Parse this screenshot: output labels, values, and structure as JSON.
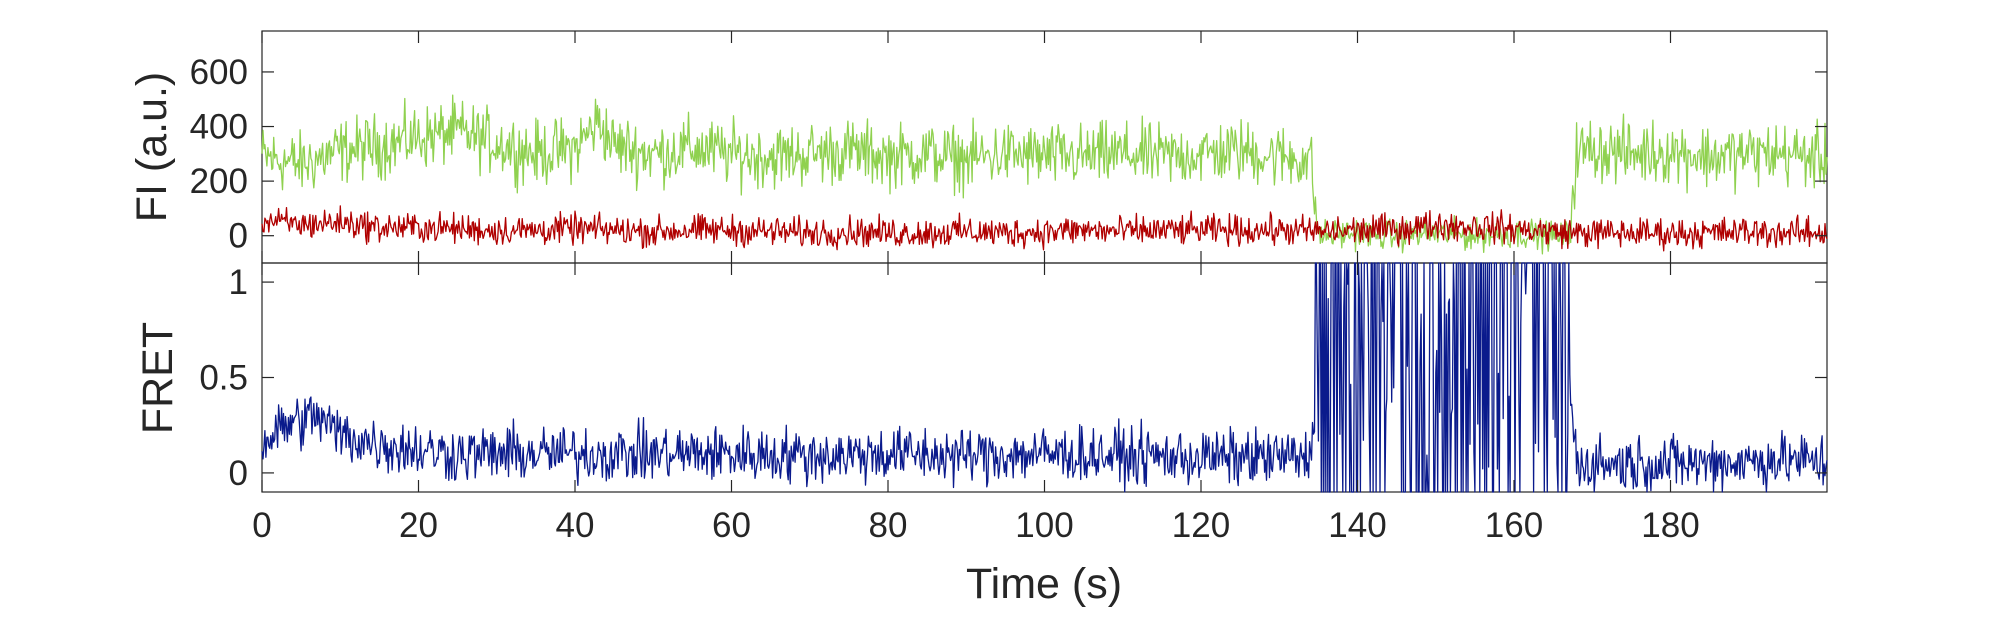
{
  "chart_data": [
    {
      "type": "line",
      "panel": "top",
      "xlabel": "",
      "ylabel": "FI (a.u.)",
      "xlim": [
        0,
        200
      ],
      "ylim": [
        -100,
        750
      ],
      "xticks": [
        0,
        20,
        40,
        60,
        80,
        100,
        120,
        140,
        160,
        180
      ],
      "yticks": [
        0,
        200,
        400,
        600
      ],
      "ytick_labels": [
        "0",
        "200",
        "400",
        "600"
      ],
      "grid": false,
      "legend": "none",
      "series": [
        {
          "color": "#8fd14f",
          "x": [
            0,
            5,
            10,
            15,
            20,
            25,
            30,
            35,
            40,
            43,
            45,
            50,
            55,
            60,
            65,
            70,
            75,
            80,
            85,
            90,
            95,
            100,
            105,
            110,
            115,
            120,
            125,
            130,
            134,
            135,
            140,
            145,
            150,
            155,
            160,
            165,
            167,
            168,
            170,
            175,
            180,
            185,
            190,
            195,
            200
          ],
          "values": [
            290,
            260,
            310,
            330,
            360,
            380,
            340,
            300,
            320,
            420,
            330,
            300,
            320,
            300,
            290,
            300,
            310,
            290,
            300,
            280,
            300,
            290,
            290,
            300,
            290,
            300,
            310,
            290,
            280,
            0,
            10,
            0,
            10,
            0,
            10,
            0,
            0,
            300,
            320,
            300,
            310,
            290,
            300,
            300,
            280
          ]
        },
        {
          "color": "#b00000",
          "x": [
            0,
            5,
            10,
            15,
            20,
            25,
            30,
            35,
            40,
            45,
            50,
            55,
            60,
            65,
            70,
            75,
            80,
            85,
            90,
            95,
            100,
            105,
            110,
            115,
            120,
            125,
            130,
            135,
            140,
            145,
            150,
            155,
            160,
            165,
            170,
            175,
            180,
            185,
            190,
            195,
            200
          ],
          "values": [
            55,
            40,
            50,
            30,
            30,
            25,
            20,
            20,
            25,
            20,
            15,
            20,
            20,
            15,
            10,
            15,
            10,
            10,
            15,
            10,
            15,
            20,
            15,
            20,
            20,
            20,
            20,
            15,
            20,
            25,
            40,
            35,
            25,
            15,
            10,
            10,
            10,
            10,
            15,
            10,
            10
          ]
        }
      ]
    },
    {
      "type": "line",
      "panel": "bottom",
      "xlabel": "Time (s)",
      "ylabel": "FRET",
      "xlim": [
        0,
        200
      ],
      "ylim": [
        -0.1,
        1.1
      ],
      "xticks": [
        0,
        20,
        40,
        60,
        80,
        100,
        120,
        140,
        160,
        180
      ],
      "xtick_labels": [
        "0",
        "20",
        "40",
        "60",
        "80",
        "100",
        "120",
        "140",
        "160",
        "180"
      ],
      "yticks": [
        0,
        0.5,
        1
      ],
      "ytick_labels": [
        "0",
        "0.5",
        "1"
      ],
      "grid": false,
      "legend": "none",
      "series": [
        {
          "color": "#0a1a8c",
          "x": [
            0,
            3,
            7,
            10,
            15,
            20,
            25,
            30,
            40,
            50,
            60,
            70,
            80,
            90,
            100,
            110,
            120,
            130,
            134,
            135,
            140,
            145,
            150,
            155,
            160,
            165,
            167,
            168,
            175,
            180,
            190,
            195,
            200
          ],
          "values": [
            0.15,
            0.25,
            0.3,
            0.2,
            0.15,
            0.12,
            0.1,
            0.1,
            0.1,
            0.1,
            0.1,
            0.09,
            0.1,
            0.09,
            0.1,
            0.09,
            0.08,
            0.08,
            0.08,
            0.6,
            0.55,
            0.5,
            0.6,
            0.55,
            0.6,
            0.55,
            0.5,
            0.05,
            0.05,
            0.05,
            0.06,
            0.07,
            0.05
          ]
        }
      ]
    }
  ]
}
